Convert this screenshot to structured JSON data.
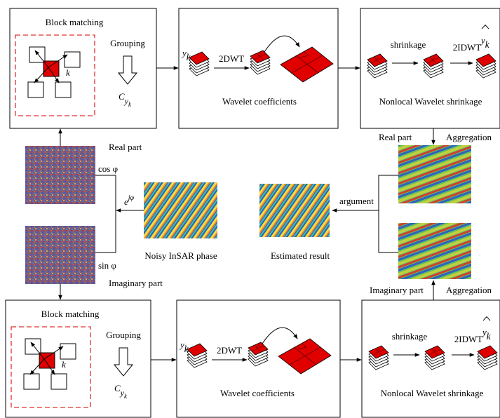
{
  "top_row": {
    "block_matching": "Block matching",
    "grouping": "Grouping",
    "group_symbol": {
      "base": "C",
      "sub": "y",
      "subsub": "k"
    },
    "input_symbol": {
      "base": "y",
      "sub": "k"
    },
    "dwt": "2DWT",
    "wavelet_coefficients": "Wavelet coefficients",
    "shrinkage": "shrinkage",
    "idwt": "2IDWT",
    "output_symbol": {
      "base": "y",
      "sub": "k"
    },
    "nonlocal": "Nonlocal Wavelet shrinkage"
  },
  "bottom_row": {
    "block_matching": "Block matching",
    "grouping": "Grouping",
    "group_symbol": {
      "base": "C",
      "sub": "y",
      "subsub": "k"
    },
    "input_symbol": {
      "base": "y",
      "sub": "k"
    },
    "dwt": "2DWT",
    "wavelet_coefficients": "Wavelet coefficients",
    "shrinkage": "shrinkage",
    "idwt": "2IDWT",
    "output_symbol": {
      "base": "y",
      "sub": "k"
    },
    "nonlocal": "Nonlocal Wavelet shrinkage"
  },
  "middle": {
    "left_real": "Real part",
    "cos": "cos φ",
    "exp": {
      "base": "e",
      "sup": "jφ"
    },
    "sin": "sin φ",
    "left_imaginary": "Imaginary part",
    "noisy": "Noisy InSAR phase",
    "estimated": "Estimated result",
    "argument": "argument",
    "right_real": "Real part",
    "aggregation_top": "Aggregation",
    "right_imaginary": "Imaginary part",
    "aggregation_bottom": "Aggregation"
  }
}
